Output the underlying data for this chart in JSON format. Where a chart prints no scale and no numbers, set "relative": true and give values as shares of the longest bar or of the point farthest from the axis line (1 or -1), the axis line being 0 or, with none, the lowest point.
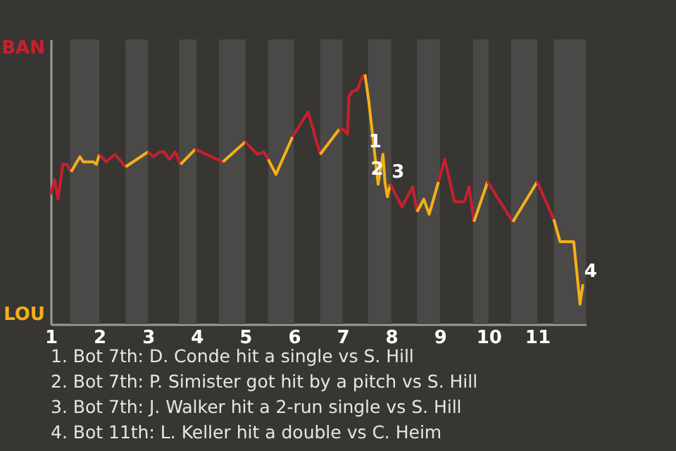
{
  "chart_data": {
    "type": "line",
    "relative": true,
    "xlim": [
      1,
      12
    ],
    "xticks": [
      1,
      2,
      3,
      4,
      5,
      6,
      7,
      8,
      9,
      10,
      11
    ],
    "marker": "none",
    "line_style": "solid",
    "series": [
      {
        "color": "#c8202e",
        "x": [
          1.0,
          1.08,
          1.15,
          1.25,
          1.33,
          1.42
        ],
        "values": [
          0.52,
          0.58,
          0.5,
          0.64,
          0.64,
          0.61
        ]
      },
      {
        "color": "#f5b019",
        "x": [
          1.42,
          1.6,
          1.67,
          1.88,
          1.94,
          2.0
        ],
        "values": [
          0.61,
          0.67,
          0.65,
          0.65,
          0.64,
          0.68
        ]
      },
      {
        "color": "#c8202e",
        "x": [
          2.0,
          2.14,
          2.32,
          2.54
        ],
        "values": [
          0.68,
          0.65,
          0.68,
          0.63
        ]
      },
      {
        "color": "#f5b019",
        "x": [
          2.54,
          3.0
        ],
        "values": [
          0.63,
          0.69
        ]
      },
      {
        "color": "#c8202e",
        "x": [
          3.0,
          3.11,
          3.25,
          3.33,
          3.44,
          3.56,
          3.67
        ],
        "values": [
          0.69,
          0.67,
          0.69,
          0.69,
          0.66,
          0.69,
          0.64
        ]
      },
      {
        "color": "#f5b019",
        "x": [
          3.67,
          3.97
        ],
        "values": [
          0.64,
          0.7
        ]
      },
      {
        "color": "#c8202e",
        "x": [
          3.97,
          4.54
        ],
        "values": [
          0.7,
          0.65
        ]
      },
      {
        "color": "#f5b019",
        "x": [
          4.54,
          5.0
        ],
        "values": [
          0.65,
          0.73
        ]
      },
      {
        "color": "#c8202e",
        "x": [
          5.0,
          5.25,
          5.38,
          5.47
        ],
        "values": [
          0.73,
          0.68,
          0.69,
          0.66
        ]
      },
      {
        "color": "#f5b019",
        "x": [
          5.47,
          5.63,
          5.97
        ],
        "values": [
          0.66,
          0.6,
          0.75
        ]
      },
      {
        "color": "#c8202e",
        "x": [
          5.97,
          6.29,
          6.54
        ],
        "values": [
          0.75,
          0.85,
          0.68
        ]
      },
      {
        "color": "#f5b019",
        "x": [
          6.54,
          6.93
        ],
        "values": [
          0.68,
          0.78
        ]
      },
      {
        "color": "#c8202e",
        "x": [
          6.93,
          7.02,
          7.1,
          7.13,
          7.19,
          7.31,
          7.38,
          7.46
        ],
        "values": [
          0.78,
          0.78,
          0.76,
          0.91,
          0.93,
          0.94,
          0.98,
          1
        ]
      },
      {
        "color": "#f5b019",
        "x": [
          7.46,
          7.54,
          7.73,
          7.83,
          7.87,
          7.92,
          7.98
        ],
        "values": [
          1,
          0.89,
          0.56,
          0.68,
          0.57,
          0.51,
          0.56
        ]
      },
      {
        "color": "#c8202e",
        "x": [
          7.98,
          8.22,
          8.44,
          8.53
        ],
        "values": [
          0.56,
          0.47,
          0.55,
          0.45
        ]
      },
      {
        "color": "#f5b019",
        "x": [
          8.53,
          8.67,
          8.78,
          8.97
        ],
        "values": [
          0.45,
          0.5,
          0.44,
          0.57
        ]
      },
      {
        "color": "#c8202e",
        "x": [
          8.97,
          9.1,
          9.3,
          9.5,
          9.6,
          9.7
        ],
        "values": [
          0.57,
          0.66,
          0.49,
          0.49,
          0.55,
          0.41
        ]
      },
      {
        "color": "#f5b019",
        "x": [
          9.7,
          9.98
        ],
        "values": [
          0.41,
          0.57
        ]
      },
      {
        "color": "#c8202e",
        "x": [
          9.98,
          10.5
        ],
        "values": [
          0.57,
          0.41
        ]
      },
      {
        "color": "#f5b019",
        "x": [
          10.5,
          11.0
        ],
        "values": [
          0.41,
          0.57
        ]
      },
      {
        "color": "#c8202e",
        "x": [
          11.0,
          11.34
        ],
        "values": [
          0.57,
          0.42
        ]
      },
      {
        "color": "#f5b019",
        "x": [
          11.34,
          11.47,
          11.75,
          11.88,
          11.94
        ],
        "values": [
          0.42,
          0.33,
          0.33,
          0.08,
          0.16
        ]
      }
    ],
    "bands": [
      {
        "axis": "x",
        "from": 1.4,
        "to": 2.0,
        "color": "#4b4947"
      },
      {
        "axis": "x",
        "from": 2.54,
        "to": 3.0,
        "color": "#4b4947"
      },
      {
        "axis": "x",
        "from": 3.64,
        "to": 4.0,
        "color": "#4b4947"
      },
      {
        "axis": "x",
        "from": 4.46,
        "to": 5.0,
        "color": "#4b4947"
      },
      {
        "axis": "x",
        "from": 5.47,
        "to": 6.0,
        "color": "#4b4947"
      },
      {
        "axis": "x",
        "from": 6.54,
        "to": 7.0,
        "color": "#4b4947"
      },
      {
        "axis": "x",
        "from": 7.52,
        "to": 8.0,
        "color": "#4b4947"
      },
      {
        "axis": "x",
        "from": 8.53,
        "to": 9.0,
        "color": "#4b4947"
      },
      {
        "axis": "x",
        "from": 9.68,
        "to": 10.0,
        "color": "#4b4947"
      },
      {
        "axis": "x",
        "from": 10.46,
        "to": 11.0,
        "color": "#4b4947"
      },
      {
        "axis": "x",
        "from": 11.34,
        "to": 12.0,
        "color": "#4b4947"
      }
    ],
    "annotations": [
      {
        "text": "1",
        "x": 7.83,
        "y": 0.68
      },
      {
        "text": "2",
        "x": 7.87,
        "y": 0.57
      },
      {
        "text": "3",
        "x": 7.98,
        "y": 0.56
      },
      {
        "text": "4",
        "x": 11.94,
        "y": 0.16
      },
      "BAN",
      "LOU",
      "1. Bot 7th: D. Conde hit a single vs S. Hill",
      "2. Bot 7th: P. Simister got hit by a pitch vs S. Hill",
      "3. Bot 7th: J. Walker hit a 2-run single vs S. Hill",
      "4. Bot 11th: L. Keller hit a double vs C. Heim"
    ]
  }
}
